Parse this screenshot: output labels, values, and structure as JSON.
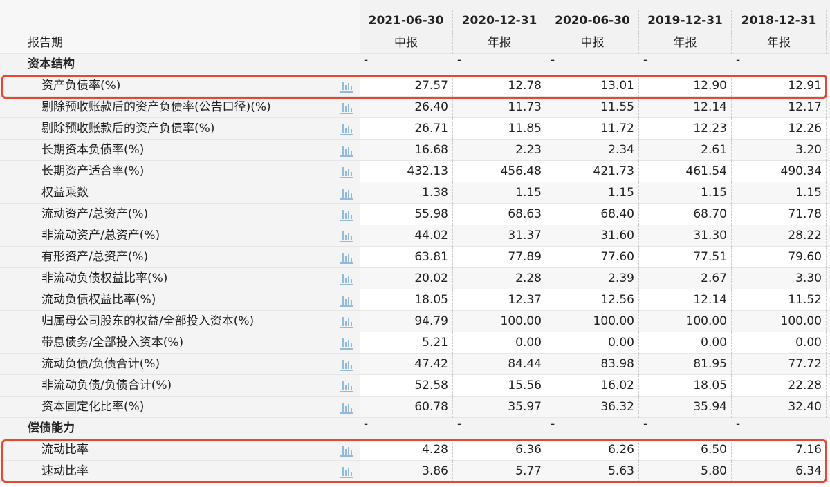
{
  "header": {
    "period_label": "报告期",
    "dates": [
      "2021-06-30",
      "2020-12-31",
      "2020-06-30",
      "2019-12-31",
      "2018-12-31"
    ],
    "report_types": [
      "中报",
      "年报",
      "中报",
      "年报",
      "年报"
    ]
  },
  "sections": [
    {
      "title": "资本结构",
      "values": [
        "-",
        "-",
        "-",
        "-",
        "-"
      ],
      "rows": [
        {
          "label": "资产负债率(%)",
          "values": [
            "27.57",
            "12.78",
            "13.01",
            "12.90",
            "12.91"
          ]
        },
        {
          "label": "剔除预收账款后的资产负债率(公告口径)(%)",
          "values": [
            "26.40",
            "11.73",
            "11.55",
            "12.14",
            "12.17"
          ]
        },
        {
          "label": "剔除预收账款后的资产负债率(%)",
          "values": [
            "26.71",
            "11.85",
            "11.72",
            "12.23",
            "12.26"
          ]
        },
        {
          "label": "长期资本负债率(%)",
          "values": [
            "16.68",
            "2.23",
            "2.34",
            "2.61",
            "3.20"
          ]
        },
        {
          "label": "长期资产适合率(%)",
          "values": [
            "432.13",
            "456.48",
            "421.73",
            "461.54",
            "490.34"
          ]
        },
        {
          "label": "权益乘数",
          "values": [
            "1.38",
            "1.15",
            "1.15",
            "1.15",
            "1.15"
          ]
        },
        {
          "label": "流动资产/总资产(%)",
          "values": [
            "55.98",
            "68.63",
            "68.40",
            "68.70",
            "71.78"
          ]
        },
        {
          "label": "非流动资产/总资产(%)",
          "values": [
            "44.02",
            "31.37",
            "31.60",
            "31.30",
            "28.22"
          ]
        },
        {
          "label": "有形资产/总资产(%)",
          "values": [
            "63.81",
            "77.89",
            "77.60",
            "77.51",
            "79.60"
          ]
        },
        {
          "label": "非流动负债权益比率(%)",
          "values": [
            "20.02",
            "2.28",
            "2.39",
            "2.67",
            "3.30"
          ]
        },
        {
          "label": "流动负债权益比率(%)",
          "values": [
            "18.05",
            "12.37",
            "12.56",
            "12.14",
            "11.52"
          ]
        },
        {
          "label": "归属母公司股东的权益/全部投入资本(%)",
          "values": [
            "94.79",
            "100.00",
            "100.00",
            "100.00",
            "100.00"
          ]
        },
        {
          "label": "带息债务/全部投入资本(%)",
          "values": [
            "5.21",
            "0.00",
            "0.00",
            "0.00",
            "0.00"
          ]
        },
        {
          "label": "流动负债/负债合计(%)",
          "values": [
            "47.42",
            "84.44",
            "83.98",
            "81.95",
            "77.72"
          ]
        },
        {
          "label": "非流动负债/负债合计(%)",
          "values": [
            "52.58",
            "15.56",
            "16.02",
            "18.05",
            "22.28"
          ]
        },
        {
          "label": "资本固定化比率(%)",
          "values": [
            "60.78",
            "35.97",
            "36.32",
            "35.94",
            "32.40"
          ]
        }
      ]
    },
    {
      "title": "偿债能力",
      "values": [
        "-",
        "-",
        "-",
        "-",
        "-"
      ],
      "rows": [
        {
          "label": "流动比率",
          "values": [
            "4.28",
            "6.36",
            "6.26",
            "6.50",
            "7.16"
          ]
        },
        {
          "label": "速动比率",
          "values": [
            "3.86",
            "5.77",
            "5.63",
            "5.80",
            "6.34"
          ]
        }
      ]
    }
  ]
}
